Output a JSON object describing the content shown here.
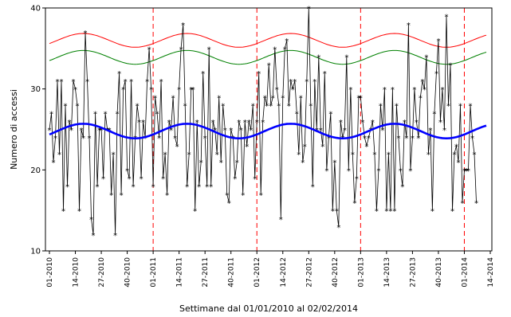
{
  "chart_data": {
    "type": "line",
    "xlabel": "Settimane dal 01/01/2010 al 02/02/2014",
    "ylabel": "Numero di accessi",
    "ylim": [
      10,
      40
    ],
    "x_unit": "weeks since 01-2010",
    "xlim": [
      0,
      219
    ],
    "y_ticks": [
      10,
      20,
      30,
      40
    ],
    "x_ticks": [
      {
        "label": "01-2010",
        "week": 0
      },
      {
        "label": "14-2010",
        "week": 13
      },
      {
        "label": "27-2010",
        "week": 26
      },
      {
        "label": "40-2010",
        "week": 39
      },
      {
        "label": "01-2011",
        "week": 52
      },
      {
        "label": "14-2011",
        "week": 65
      },
      {
        "label": "27-2011",
        "week": 78
      },
      {
        "label": "40-2011",
        "week": 91
      },
      {
        "label": "01-2012",
        "week": 104
      },
      {
        "label": "14-2012",
        "week": 117
      },
      {
        "label": "27-2012",
        "week": 130
      },
      {
        "label": "40-2012",
        "week": 143
      },
      {
        "label": "01-2013",
        "week": 156
      },
      {
        "label": "14-2013",
        "week": 169
      },
      {
        "label": "27-2013",
        "week": 182
      },
      {
        "label": "40-2013",
        "week": 195
      },
      {
        "label": "01-2014",
        "week": 208
      },
      {
        "label": "14-2014",
        "week": 221
      }
    ],
    "year_boundaries": [
      52,
      104,
      156,
      208
    ],
    "grid": false,
    "colors": {
      "observed": "#000000",
      "fitted": "#0000ff",
      "upper_limit": "#ff0000",
      "lower_limit": "#008000",
      "year_marker": "#ff0000"
    },
    "series": [
      {
        "role": "observed",
        "x_start": 0,
        "values": [
          25,
          27,
          21,
          24,
          31,
          22,
          31,
          15,
          28,
          18,
          26,
          25,
          31,
          30,
          28,
          15,
          25,
          24,
          37,
          31,
          24,
          14,
          12,
          27,
          18,
          25,
          25,
          19,
          27,
          25,
          25,
          17,
          22,
          12,
          27,
          32,
          17,
          30,
          31,
          20,
          19,
          31,
          18,
          24,
          28,
          26,
          19,
          26,
          24,
          31,
          35,
          30,
          18,
          29,
          27,
          24,
          31,
          19,
          22,
          17,
          26,
          25,
          29,
          24,
          23,
          30,
          35,
          38,
          28,
          18,
          22,
          30,
          30,
          15,
          26,
          18,
          21,
          32,
          24,
          18,
          35,
          18,
          26,
          25,
          22,
          29,
          21,
          28,
          25,
          17,
          16,
          25,
          24,
          19,
          21,
          26,
          25,
          17,
          26,
          23,
          26,
          25,
          28,
          19,
          26,
          32,
          17,
          26,
          29,
          28,
          33,
          28,
          29,
          35,
          30,
          28,
          14,
          29,
          35,
          36,
          28,
          31,
          30,
          31,
          27,
          22,
          29,
          21,
          23,
          31,
          40,
          28,
          18,
          31,
          25,
          34,
          25,
          23,
          32,
          20,
          24,
          27,
          15,
          21,
          15,
          13,
          26,
          24,
          25,
          34,
          20,
          30,
          22,
          16,
          19,
          29,
          29,
          26,
          24,
          23,
          24,
          25,
          26,
          22,
          15,
          20,
          28,
          25,
          30,
          15,
          22,
          15,
          30,
          15,
          28,
          24,
          20,
          18,
          26,
          24,
          38,
          20,
          24,
          30,
          26,
          24,
          29,
          31,
          30,
          34,
          22,
          25,
          15,
          27,
          32,
          36,
          26,
          30,
          25,
          39,
          28,
          33,
          15,
          22,
          23,
          21,
          28,
          16,
          20,
          20,
          20,
          28,
          24,
          22,
          16
        ]
      },
      {
        "role": "fitted",
        "mean": 24.8,
        "amplitude": 0.9,
        "period_weeks": 52,
        "phase_week": 17
      },
      {
        "role": "upper_limit",
        "mean": 36.0,
        "amplitude": 0.85,
        "period_weeks": 52,
        "phase_week": 17
      },
      {
        "role": "lower_limit",
        "mean": 33.9,
        "amplitude": 0.85,
        "period_weeks": 52,
        "phase_week": 17
      }
    ]
  }
}
